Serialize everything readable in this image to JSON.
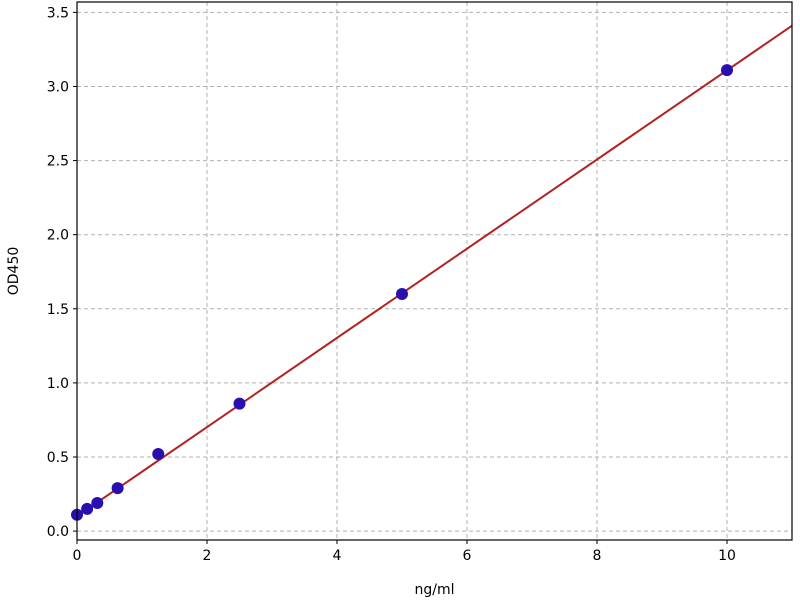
{
  "chart_data": {
    "type": "scatter",
    "title": "",
    "xlabel": "ng/ml",
    "ylabel": "OD450",
    "xlim": [
      0,
      11
    ],
    "ylim": [
      -0.06,
      3.57
    ],
    "xticks": [
      0,
      2,
      4,
      6,
      8,
      10
    ],
    "xtick_labels": [
      "0",
      "2",
      "4",
      "6",
      "8",
      "10"
    ],
    "yticks": [
      0.0,
      0.5,
      1.0,
      1.5,
      2.0,
      2.5,
      3.0,
      3.5
    ],
    "ytick_labels": [
      "0.0",
      "0.5",
      "1.0",
      "1.5",
      "2.0",
      "2.5",
      "3.0",
      "3.5"
    ],
    "grid": true,
    "points": {
      "x": [
        0,
        0.156,
        0.3125,
        0.625,
        1.25,
        2.5,
        5,
        10
      ],
      "y": [
        0.11,
        0.15,
        0.19,
        0.29,
        0.52,
        0.86,
        1.6,
        3.11
      ],
      "color": "#2a0fb0"
    },
    "fit_line": {
      "x": [
        0,
        11
      ],
      "y": [
        0.1,
        3.41
      ],
      "color": "#b22222"
    }
  }
}
